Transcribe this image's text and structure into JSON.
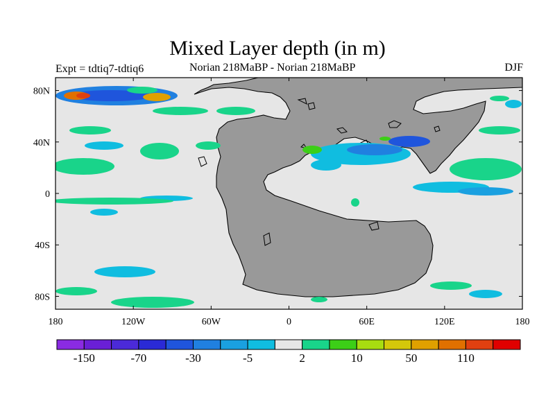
{
  "header": {
    "title": "Mixed Layer depth (in m)",
    "expt_label": "Expt = tdtiq7-tdtiq6",
    "comparison": "Norian   218MaBP - Norian   218MaBP",
    "season": "DJF"
  },
  "map": {
    "projection": "cylindrical-equidistant",
    "lon_range": [
      -180,
      180
    ],
    "lat_range": [
      -90,
      90
    ],
    "xticks": [
      {
        "lon": -180,
        "label": "180"
      },
      {
        "lon": -120,
        "label": "120W"
      },
      {
        "lon": -60,
        "label": "60W"
      },
      {
        "lon": 0,
        "label": "0"
      },
      {
        "lon": 60,
        "label": "60E"
      },
      {
        "lon": 120,
        "label": "120E"
      },
      {
        "lon": 180,
        "label": "180"
      }
    ],
    "yticks": [
      {
        "lat": 80,
        "label": "80N"
      },
      {
        "lat": 40,
        "label": "40N"
      },
      {
        "lat": 0,
        "label": "0"
      },
      {
        "lat": -40,
        "label": "40S"
      },
      {
        "lat": -80,
        "label": "80S"
      }
    ],
    "colors": {
      "land": "#999999",
      "ocean_neutral": "#e6e6e6",
      "coastline": "#000000"
    }
  },
  "colorbar": {
    "colors": [
      "#8a2be2",
      "#6a1fd6",
      "#4b2ad8",
      "#2a2ad6",
      "#1f55dc",
      "#2080e0",
      "#1aa0e0",
      "#10bde0",
      "#e6e6e6",
      "#19d48a",
      "#3ccf17",
      "#a8dc10",
      "#d4c80a",
      "#e0a000",
      "#e07000",
      "#e04010",
      "#e00000"
    ],
    "labels": [
      "-150",
      "-70",
      "-30",
      "-5",
      "2",
      "10",
      "50",
      "110"
    ]
  }
}
